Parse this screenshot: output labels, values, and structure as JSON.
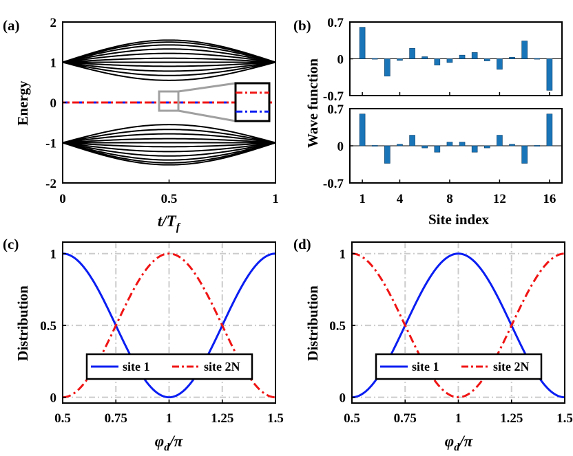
{
  "colors": {
    "blue": "#0a1ef2",
    "red": "#f01414",
    "bar": "#1a75b8",
    "grid": "#cccccc",
    "inset_box": "#a0a0a0"
  },
  "chart_data": [
    {
      "id": "a",
      "type": "line",
      "panel_label": "(a)",
      "xlabel": "t/T_f",
      "xlabel_main": "t/T",
      "xlabel_sub": "f",
      "ylabel": "Energy",
      "xlim": [
        0,
        1
      ],
      "ylim": [
        -2,
        2
      ],
      "x_ticks": [
        "0",
        "0.5",
        "1"
      ],
      "y_ticks": [
        "2",
        "1",
        "0",
        "-1",
        "-2"
      ],
      "band_center": 1,
      "band_peak_offsets": [
        0.55,
        0.5,
        0.43,
        0.33,
        0.22,
        0.1,
        0.0,
        -0.1,
        -0.22,
        -0.33,
        -0.45
      ],
      "edge_modes": {
        "upper": "red dash-dot at E=0",
        "lower": "blue dash-dot at E=0"
      },
      "inset": {
        "description": "zoom of zero-energy modes near t/T_f = 0.5",
        "upper_value": 0.3,
        "lower_value": -0.3
      }
    },
    {
      "id": "b_top",
      "type": "bar",
      "panel_label": "(b)",
      "ylabel": "Wave function",
      "ylim": [
        -0.7,
        0.7
      ],
      "y_ticks": [
        "0.7",
        "0",
        "-0.7"
      ],
      "x": [
        1,
        2,
        3,
        4,
        5,
        6,
        7,
        8,
        9,
        10,
        11,
        12,
        13,
        14,
        15,
        16
      ],
      "values": [
        0.6,
        0.0,
        -0.33,
        -0.03,
        0.2,
        0.04,
        -0.12,
        -0.07,
        0.07,
        0.12,
        -0.04,
        -0.2,
        0.03,
        0.34,
        -0.01,
        -0.6
      ]
    },
    {
      "id": "b_bottom",
      "type": "bar",
      "xlabel": "Site index",
      "ylim": [
        -0.7,
        0.7
      ],
      "y_ticks": [
        "0.7",
        "0",
        "-0.7"
      ],
      "x_ticks": [
        "1",
        "4",
        "8",
        "12",
        "16"
      ],
      "x": [
        1,
        2,
        3,
        4,
        5,
        6,
        7,
        8,
        9,
        10,
        11,
        12,
        13,
        14,
        15,
        16
      ],
      "values": [
        0.6,
        -0.01,
        -0.33,
        0.03,
        0.2,
        -0.04,
        -0.12,
        0.07,
        0.07,
        -0.12,
        -0.04,
        0.2,
        0.03,
        -0.33,
        -0.01,
        0.6
      ]
    },
    {
      "id": "c",
      "type": "line",
      "panel_label": "(c)",
      "xlabel": "phi_d/pi",
      "xlabel_main": "φ",
      "xlabel_sub": "d",
      "xlabel_tail": "/π",
      "ylabel": "Distribution",
      "xlim": [
        0.5,
        1.5
      ],
      "ylim": [
        0,
        1
      ],
      "x_ticks": [
        "0.5",
        "0.75",
        "1",
        "1.25",
        "1.5"
      ],
      "y_ticks": [
        "1",
        "0.5",
        "0"
      ],
      "grid": true,
      "legend_position": "lower-center",
      "series": [
        {
          "name": "site 1",
          "color": "blue",
          "style": "solid",
          "formula": "sin^2(pi*x)"
        },
        {
          "name": "site 2N",
          "color": "red",
          "style": "dashdot",
          "formula": "cos^2(pi*x)"
        }
      ]
    },
    {
      "id": "d",
      "type": "line",
      "panel_label": "(d)",
      "xlabel": "phi_d/pi",
      "xlabel_main": "φ",
      "xlabel_sub": "d",
      "xlabel_tail": "/π",
      "ylabel": "Distribution",
      "xlim": [
        0.5,
        1.5
      ],
      "ylim": [
        0,
        1
      ],
      "x_ticks": [
        "0.5",
        "0.75",
        "1",
        "1.25",
        "1.5"
      ],
      "y_ticks": [
        "1",
        "0.5",
        "0"
      ],
      "grid": true,
      "legend_position": "lower-center",
      "series": [
        {
          "name": "site 1",
          "color": "blue",
          "style": "solid",
          "formula": "cos^2(pi*x)"
        },
        {
          "name": "site 2N",
          "color": "red",
          "style": "dashdot",
          "formula": "sin^2(pi*x)"
        }
      ]
    }
  ]
}
